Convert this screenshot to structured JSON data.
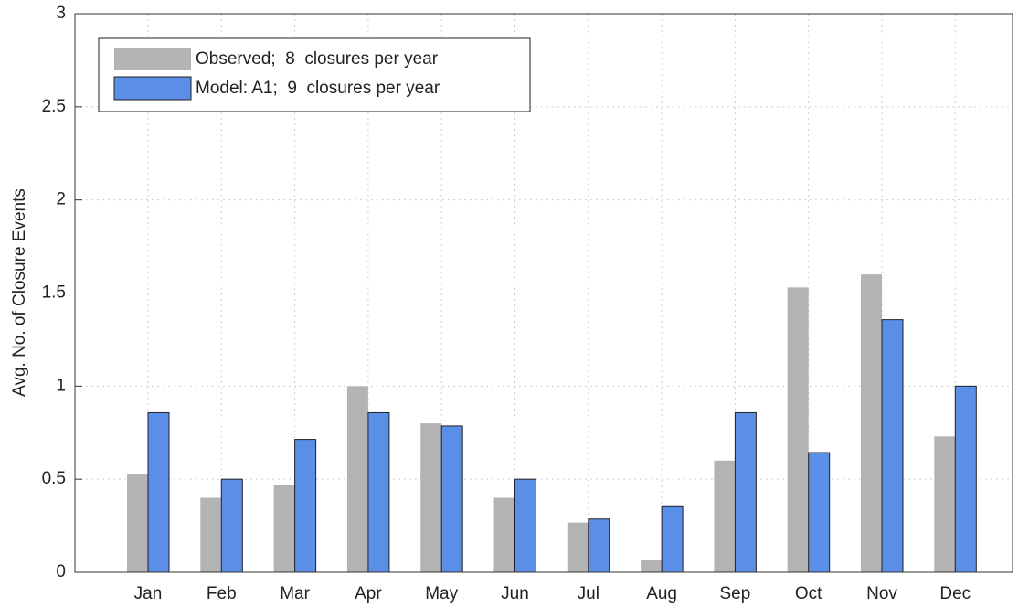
{
  "chart_data": {
    "type": "bar",
    "y_label": "Avg. No. of Closure Events",
    "categories": [
      "Jan",
      "Feb",
      "Mar",
      "Apr",
      "May",
      "Jun",
      "Jul",
      "Aug",
      "Sep",
      "Oct",
      "Nov",
      "Dec"
    ],
    "series": [
      {
        "name": "Observed;  8  closures per year",
        "color": "#b3b3b3",
        "values": [
          0.53,
          0.4,
          0.47,
          1.0,
          0.8,
          0.4,
          0.267,
          0.067,
          0.6,
          1.53,
          1.6,
          0.73
        ]
      },
      {
        "name": "Model: A1;  9  closures per year",
        "color": "#5b8ee6",
        "values": [
          0.857,
          0.5,
          0.714,
          0.857,
          0.786,
          0.5,
          0.286,
          0.357,
          0.857,
          0.643,
          1.357,
          1.0
        ]
      }
    ],
    "ylim": [
      0,
      3
    ],
    "yticks": [
      0,
      0.5,
      1,
      1.5,
      2,
      2.5,
      3
    ],
    "grid": true,
    "legend": "upper left"
  }
}
